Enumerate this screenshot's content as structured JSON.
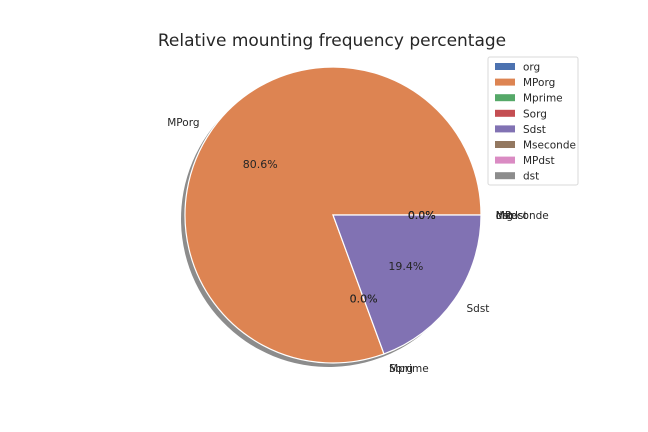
{
  "chart_data": {
    "type": "pie",
    "title": "Relative mounting frequency percentage",
    "legend_position": "top-right",
    "shadow": true,
    "start_angle_deg": 0,
    "direction": "counterclockwise",
    "slices": [
      {
        "label": "org",
        "value": 0.0,
        "pct_label": "0.0%",
        "color": "#4c72b0"
      },
      {
        "label": "MPorg",
        "value": 80.6,
        "pct_label": "80.6%",
        "color": "#dd8452"
      },
      {
        "label": "Mprime",
        "value": 0.0,
        "pct_label": "0.0%",
        "color": "#55a868"
      },
      {
        "label": "Sorg",
        "value": 0.0,
        "pct_label": "0.0%",
        "color": "#c44e52"
      },
      {
        "label": "Sdst",
        "value": 19.4,
        "pct_label": "19.4%",
        "color": "#8172b3"
      },
      {
        "label": "Mseconde",
        "value": 0.0,
        "pct_label": "0.0%",
        "color": "#937860"
      },
      {
        "label": "MPdst",
        "value": 0.0,
        "pct_label": "0.0%",
        "color": "#da8bc3"
      },
      {
        "label": "dst",
        "value": 0.0,
        "pct_label": "0.0%",
        "color": "#8c8c8c"
      }
    ]
  }
}
